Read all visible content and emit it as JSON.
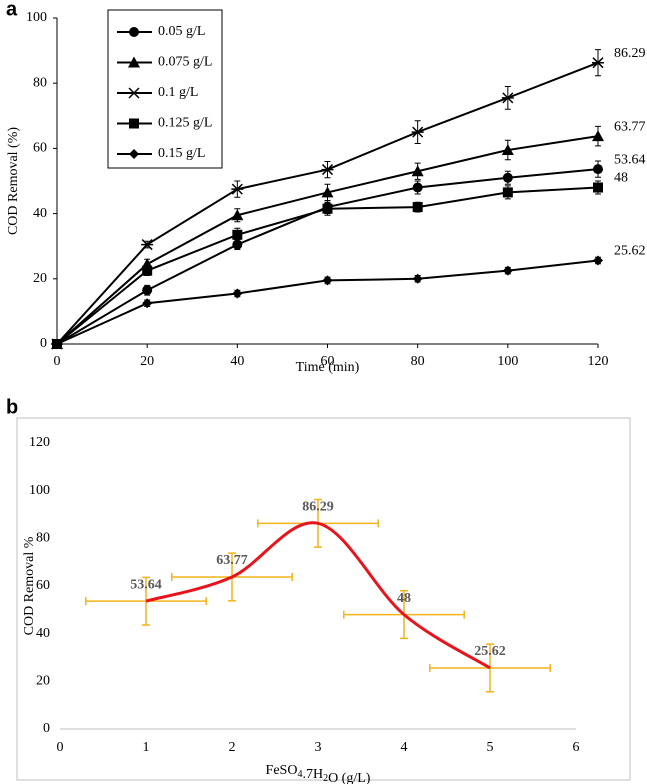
{
  "chart_data": [
    {
      "type": "line",
      "panel_label": "a",
      "x_label": "Time (min)",
      "y_label": "COD Removal (%)",
      "x": [
        0,
        20,
        40,
        60,
        80,
        100,
        120
      ],
      "xlim": [
        0,
        120
      ],
      "xticks": [
        0,
        20,
        40,
        60,
        80,
        100,
        120
      ],
      "ylim": [
        0,
        100
      ],
      "yticks": [
        0,
        20,
        40,
        60,
        80,
        100
      ],
      "legend": "top-left",
      "end_labels": true,
      "series": [
        {
          "name": "0.05 g/L",
          "color": "#000000",
          "marker": "circle",
          "values": [
            0,
            16.5,
            30.5,
            42,
            48,
            51,
            53.64
          ],
          "y_errors": [
            0,
            1.5,
            1.5,
            2,
            2,
            2,
            2.5
          ]
        },
        {
          "name": "0.075 g/L",
          "color": "#000000",
          "marker": "triangle",
          "values": [
            0,
            24.5,
            39.5,
            46.5,
            53,
            59.5,
            63.77
          ],
          "y_errors": [
            0,
            1.5,
            2,
            2.5,
            2.5,
            3,
            3
          ]
        },
        {
          "name": "0.1 g/L",
          "color": "#000000",
          "marker": "star",
          "values": [
            0,
            30.5,
            47.5,
            53.5,
            65,
            75.5,
            86.29
          ],
          "y_errors": [
            0,
            1,
            2.5,
            2.5,
            3.5,
            3.5,
            4
          ]
        },
        {
          "name": "0.125 g/L",
          "color": "#000000",
          "marker": "square",
          "values": [
            0,
            22.5,
            33.5,
            41.5,
            42,
            46.5,
            48
          ],
          "y_errors": [
            0,
            1.5,
            2,
            2,
            1.5,
            2,
            2
          ]
        },
        {
          "name": "0.15 g/L",
          "color": "#000000",
          "marker": "diamond",
          "values": [
            0,
            12.5,
            15.5,
            19.5,
            20,
            22.5,
            25.62
          ],
          "y_errors": [
            0,
            1,
            1,
            1,
            1,
            1,
            1
          ]
        }
      ]
    },
    {
      "type": "smooth-line",
      "panel_label": "b",
      "x_label": "FeSO4.7H2O (g/L)",
      "y_label": "COD Removal %",
      "x": [
        1,
        2,
        3,
        4,
        5
      ],
      "values": [
        53.64,
        63.77,
        86.29,
        48,
        25.62
      ],
      "x_errors": [
        0.7,
        0.7,
        0.7,
        0.7,
        0.7
      ],
      "y_errors": [
        10,
        10,
        10,
        10,
        10
      ],
      "color": "#e8141b",
      "error_color": "#f2b418",
      "label_color": "#595959",
      "xlim": [
        0,
        6
      ],
      "xticks": [
        0,
        1,
        2,
        3,
        4,
        5,
        6
      ],
      "ylim": [
        0,
        120
      ],
      "yticks": [
        0,
        20,
        40,
        60,
        80,
        100,
        120
      ]
    }
  ]
}
